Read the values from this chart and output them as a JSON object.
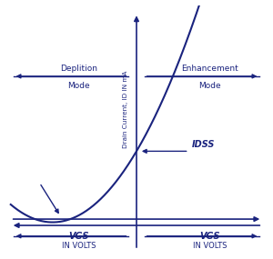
{
  "color": "#1a237e",
  "bg_color": "#ffffff",
  "ylabel": "Drain Current, ID IN mA",
  "label_depletion_1": "Deplition",
  "label_depletion_2": "Mode",
  "label_enhancement_1": "Enhancement",
  "label_enhancement_2": "Mode",
  "label_idss": "IDSS",
  "label_vgs": "VGS",
  "label_involts": "IN VOLTS",
  "xlim": [
    -5,
    5
  ],
  "ylim": [
    -0.8,
    5.5
  ],
  "vp": -3.2,
  "idss_level": 1.8,
  "axis_cross_x": 0,
  "axis_cross_y": 0,
  "xaxis_y": 0,
  "yaxis_x": 0
}
